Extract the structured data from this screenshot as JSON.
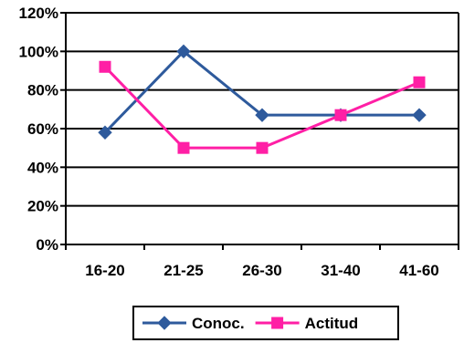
{
  "chart_data": {
    "type": "line",
    "categories": [
      "16-20",
      "21-25",
      "26-30",
      "31-40",
      "41-60"
    ],
    "series": [
      {
        "name": "Conoc.",
        "values": [
          58,
          100,
          67,
          67,
          67
        ],
        "color": "#2E5A9C",
        "marker": "diamond"
      },
      {
        "name": "Actitud",
        "values": [
          92,
          50,
          50,
          67,
          84
        ],
        "color": "#FF1FA5",
        "marker": "square"
      }
    ],
    "ylim": [
      0,
      120
    ],
    "yticks": [
      "0%",
      "20%",
      "40%",
      "60%",
      "80%",
      "100%",
      "120%"
    ],
    "grid": true,
    "legend": "bottom"
  }
}
